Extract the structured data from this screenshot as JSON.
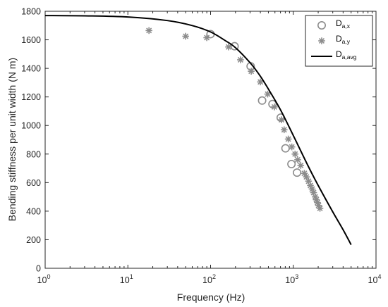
{
  "chart_data": {
    "type": "scatter",
    "xlabel": "Frequency (Hz)",
    "ylabel": "Bending stiffness per unit width (N m)",
    "x_scale": "log",
    "xlim": [
      1,
      10000
    ],
    "ylim": [
      0,
      1800
    ],
    "x_ticks": [
      {
        "value": 1,
        "base": "10",
        "exp": "0"
      },
      {
        "value": 10,
        "base": "10",
        "exp": "1"
      },
      {
        "value": 100,
        "base": "10",
        "exp": "2"
      },
      {
        "value": 1000,
        "base": "10",
        "exp": "3"
      },
      {
        "value": 10000,
        "base": "10",
        "exp": "4"
      }
    ],
    "y_ticks": [
      0,
      200,
      400,
      600,
      800,
      1000,
      1200,
      1400,
      1600,
      1800
    ],
    "grid": false,
    "legend_position": "top-right",
    "series": [
      {
        "name": {
          "base": "D",
          "sub": "a,x"
        },
        "kind": "marker-circle",
        "color": "#8c8c8c",
        "points": [
          [
            100,
            1640
          ],
          [
            195,
            1555
          ],
          [
            305,
            1415
          ],
          [
            420,
            1175
          ],
          [
            560,
            1150
          ],
          [
            705,
            1055
          ],
          [
            805,
            840
          ],
          [
            950,
            730
          ],
          [
            1110,
            670
          ]
        ]
      },
      {
        "name": {
          "base": "D",
          "sub": "a,y"
        },
        "kind": "marker-star",
        "color": "#8c8c8c",
        "points": [
          [
            18,
            1665
          ],
          [
            50,
            1625
          ],
          [
            90,
            1615
          ],
          [
            165,
            1550
          ],
          [
            230,
            1460
          ],
          [
            310,
            1380
          ],
          [
            400,
            1305
          ],
          [
            490,
            1220
          ],
          [
            590,
            1130
          ],
          [
            720,
            1040
          ],
          [
            775,
            970
          ],
          [
            870,
            905
          ],
          [
            960,
            850
          ],
          [
            1050,
            800
          ],
          [
            1130,
            760
          ],
          [
            1230,
            720
          ],
          [
            1360,
            665
          ],
          [
            1440,
            640
          ],
          [
            1530,
            610
          ],
          [
            1610,
            580
          ],
          [
            1690,
            555
          ],
          [
            1760,
            530
          ],
          [
            1840,
            500
          ],
          [
            1900,
            480
          ],
          [
            1960,
            460
          ],
          [
            2020,
            440
          ],
          [
            2100,
            420
          ]
        ]
      },
      {
        "name": {
          "base": "D",
          "sub": "a,avg"
        },
        "kind": "line",
        "color": "#000000",
        "points": [
          [
            1,
            1770
          ],
          [
            3,
            1768
          ],
          [
            10,
            1760
          ],
          [
            30,
            1735
          ],
          [
            60,
            1700
          ],
          [
            100,
            1655
          ],
          [
            150,
            1595
          ],
          [
            200,
            1545
          ],
          [
            300,
            1440
          ],
          [
            400,
            1345
          ],
          [
            500,
            1255
          ],
          [
            700,
            1110
          ],
          [
            1000,
            930
          ],
          [
            1500,
            720
          ],
          [
            2000,
            580
          ],
          [
            3000,
            395
          ],
          [
            4000,
            270
          ],
          [
            5000,
            165
          ]
        ]
      }
    ]
  }
}
